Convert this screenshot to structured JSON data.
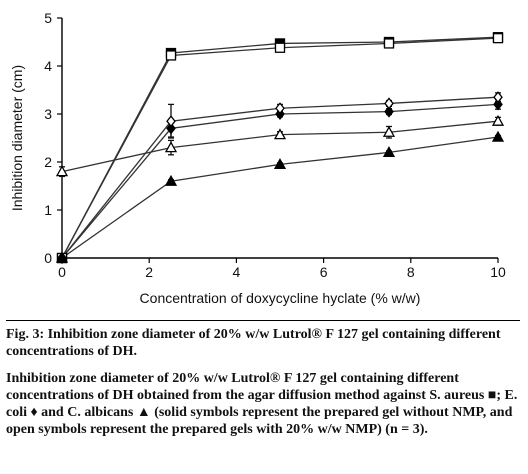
{
  "chart_data": {
    "type": "line",
    "xlabel": "Concentration of doxycycline hyclate (% w/w)",
    "ylabel": "Inhibition diameter (cm)",
    "xlim": [
      0,
      10
    ],
    "ylim": [
      0,
      5
    ],
    "xticks": [
      0,
      2,
      4,
      6,
      8,
      10
    ],
    "yticks": [
      0,
      1,
      2,
      3,
      4,
      5
    ],
    "grid": false,
    "legend": "none",
    "series": [
      {
        "marker": "square-filled",
        "x": [
          0,
          2.5,
          5,
          7.5,
          10
        ],
        "y": [
          0,
          4.27,
          4.47,
          4.5,
          4.6
        ],
        "err": [
          0,
          0.05,
          0.04,
          0.04,
          0.05
        ]
      },
      {
        "marker": "square-open",
        "x": [
          0,
          2.5,
          5,
          7.5,
          10
        ],
        "y": [
          0,
          4.22,
          4.38,
          4.47,
          4.58
        ],
        "err": [
          0,
          0.05,
          0.04,
          0.04,
          0.05
        ]
      },
      {
        "marker": "diamond-filled",
        "x": [
          0,
          2.5,
          5,
          7.5,
          10
        ],
        "y": [
          0,
          2.7,
          3.0,
          3.05,
          3.2
        ],
        "err": [
          0,
          0.18,
          0.06,
          0.06,
          0.1
        ]
      },
      {
        "marker": "diamond-open",
        "x": [
          0,
          2.5,
          5,
          7.5,
          10
        ],
        "y": [
          0,
          2.85,
          3.12,
          3.22,
          3.35
        ],
        "err": [
          0,
          0.35,
          0.08,
          0.06,
          0.09
        ]
      },
      {
        "marker": "triangle-filled",
        "x": [
          0,
          2.5,
          5,
          7.5,
          10
        ],
        "y": [
          0,
          1.6,
          1.95,
          2.2,
          2.52
        ],
        "err": [
          0,
          0.03,
          0.03,
          0.03,
          0.03
        ]
      },
      {
        "marker": "triangle-open",
        "x": [
          0,
          2.5,
          5,
          7.5,
          10
        ],
        "y": [
          1.8,
          2.3,
          2.57,
          2.62,
          2.85
        ],
        "err": [
          0.1,
          0.15,
          0.06,
          0.12,
          0.08
        ]
      }
    ]
  },
  "caption": {
    "figure": "Fig. 3: Inhibition zone diameter of 20% w/w Lutrol® F 127 gel containing different concentrations of DH.",
    "description": "Inhibition zone diameter of 20% w/w Lutrol® F 127 gel containing different concentrations of DH obtained from the agar diffusion method against S. aureus ■; E. coli ♦ and C. albicans ▲ (solid symbols represent the prepared gel without NMP, and open symbols represent the prepared gels with 20% w/w NMP) (n = 3)."
  }
}
